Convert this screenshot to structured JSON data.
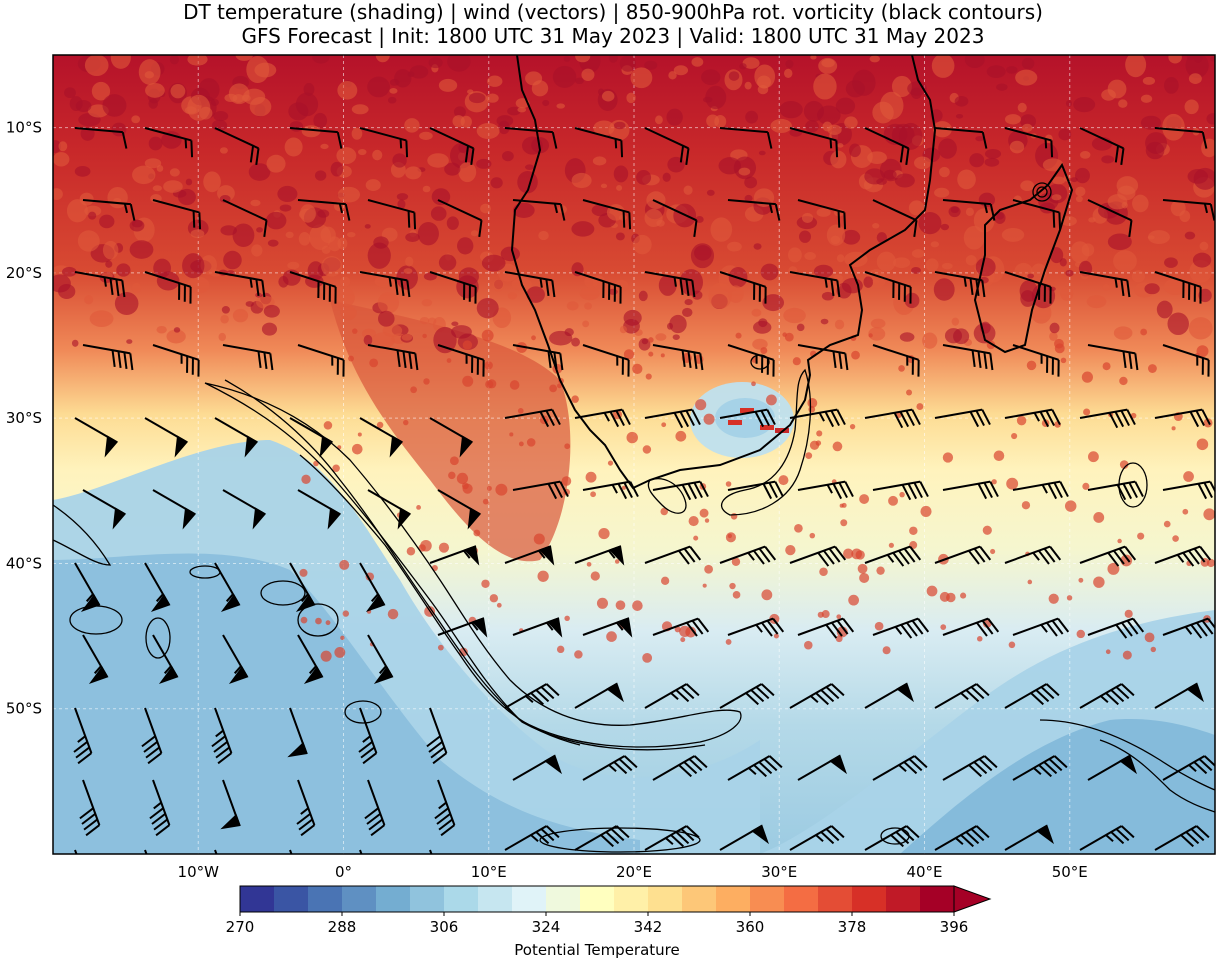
{
  "figure": {
    "title_line1": "DT temperature (shading) | wind (vectors) | 850-900hPa rot. vorticity (black contours)",
    "title_line2": "GFS Forecast | Init: 1800 UTC 31 May 2023 | Valid: 1800 UTC 31 May 2023"
  },
  "map": {
    "lon_range": [
      -20,
      60
    ],
    "lat_range": [
      -60,
      -5
    ],
    "lat_ticks": [
      {
        "value": -10,
        "label": "10°S"
      },
      {
        "value": -20,
        "label": "20°S"
      },
      {
        "value": -30,
        "label": "30°S"
      },
      {
        "value": -40,
        "label": "40°S"
      },
      {
        "value": -50,
        "label": "50°S"
      }
    ],
    "lon_ticks": [
      {
        "value": -10,
        "label": "10°W"
      },
      {
        "value": 0,
        "label": "0°"
      },
      {
        "value": 10,
        "label": "10°E"
      },
      {
        "value": 20,
        "label": "20°E"
      },
      {
        "value": 30,
        "label": "30°E"
      },
      {
        "value": 40,
        "label": "40°E"
      },
      {
        "value": 50,
        "label": "50°E"
      }
    ]
  },
  "colorbar": {
    "label": "Potential Temperature",
    "tick_values": [
      "270",
      "288",
      "306",
      "324",
      "342",
      "360",
      "378",
      "396"
    ],
    "levels": [
      270,
      276,
      282,
      288,
      294,
      300,
      306,
      312,
      318,
      324,
      330,
      336,
      342,
      348,
      354,
      360,
      366,
      372,
      378,
      384,
      390,
      396
    ],
    "colors": [
      "#313695",
      "#3a55a4",
      "#4a74b4",
      "#5f90c2",
      "#74add1",
      "#90c3dd",
      "#abd9e9",
      "#c6e6f0",
      "#e0f3f8",
      "#eff9dd",
      "#ffffbf",
      "#fff0a8",
      "#fee090",
      "#fdc778",
      "#fdae61",
      "#f88d52",
      "#f46d43",
      "#e44d35",
      "#d73027",
      "#c01a27",
      "#a50026"
    ],
    "extend": "max"
  },
  "colors": {
    "contour": "#000000",
    "coast": "#000000",
    "barb": "#000000"
  }
}
